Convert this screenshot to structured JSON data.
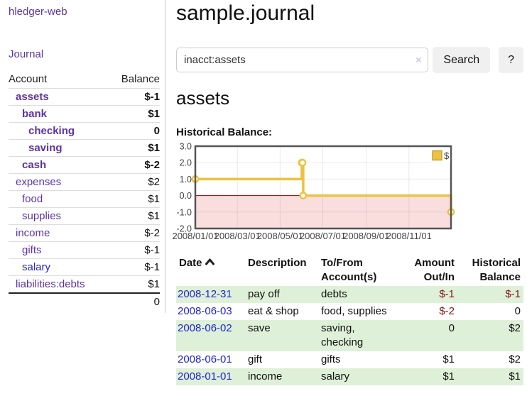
{
  "colors": {
    "link_purple": "#5c34a2",
    "link_blue": "#2323d6",
    "negative": "#801515",
    "negative_muted": "rgba(128,21,21,0.5)",
    "row_green": "#dff0d8",
    "chart_series_yellow": "#edc240",
    "chart_negative_fill": "#fadede",
    "chart_zero_line": "#8b0000",
    "chart_border": "#545454"
  },
  "app": {
    "brand": "hledger-web"
  },
  "sidebar": {
    "journal_label": "Journal",
    "accounts": {
      "headers": [
        "Account",
        "Balance"
      ],
      "rows": [
        {
          "account": "assets",
          "balance": "$-1",
          "indent": 0,
          "bold": true,
          "balance_tone": "negative",
          "link_tone": "purple"
        },
        {
          "account": "bank",
          "balance": "$1",
          "indent": 1,
          "bold": true,
          "balance_tone": "normal",
          "link_tone": "purple"
        },
        {
          "account": "checking",
          "balance": "0",
          "indent": 2,
          "bold": true,
          "balance_tone": "normal",
          "link_tone": "purple"
        },
        {
          "account": "saving",
          "balance": "$1",
          "indent": 2,
          "bold": true,
          "balance_tone": "normal",
          "link_tone": "purple"
        },
        {
          "account": "cash",
          "balance": "$-2",
          "indent": 1,
          "bold": true,
          "balance_tone": "negative",
          "link_tone": "purple"
        },
        {
          "account": "expenses",
          "balance": "$2",
          "indent": 0,
          "bold": false,
          "balance_tone": "normal",
          "link_tone": "purple"
        },
        {
          "account": "food",
          "balance": "$1",
          "indent": 1,
          "bold": false,
          "balance_tone": "normal",
          "link_tone": "purple"
        },
        {
          "account": "supplies",
          "balance": "$1",
          "indent": 1,
          "bold": false,
          "balance_tone": "normal",
          "link_tone": "purple"
        },
        {
          "account": "income",
          "balance": "$-2",
          "indent": 0,
          "bold": false,
          "balance_tone": "negative-muted",
          "link_tone": "purple"
        },
        {
          "account": "gifts",
          "balance": "$-1",
          "indent": 1,
          "bold": false,
          "balance_tone": "negative-muted",
          "link_tone": "purple"
        },
        {
          "account": "salary",
          "balance": "$-1",
          "indent": 1,
          "bold": false,
          "balance_tone": "negative-muted",
          "link_tone": "blue"
        },
        {
          "account": "liabilities:debts",
          "balance": "$1",
          "indent": 0,
          "bold": false,
          "balance_tone": "normal",
          "link_tone": "purple"
        }
      ],
      "total": "0"
    }
  },
  "main": {
    "title": "sample.journal",
    "search": {
      "value": "inacct:assets",
      "clear_icon": "×",
      "button_label": "Search",
      "help_label": "?"
    },
    "account_heading": "assets",
    "chart_heading": "Historical Balance:"
  },
  "chart_data": {
    "type": "line",
    "step": true,
    "title": "Historical Balance",
    "series": [
      {
        "name": "$",
        "color": "#edc240",
        "points": [
          [
            "2008-01-01",
            1
          ],
          [
            "2008-06-01",
            2
          ],
          [
            "2008-06-02",
            2
          ],
          [
            "2008-06-03",
            0
          ],
          [
            "2008-12-31",
            -1
          ]
        ]
      }
    ],
    "x_range": [
      "2008-01-01",
      "2008-12-31"
    ],
    "x_ticks": [
      {
        "date": "2008-01-01",
        "label": "2008/01/01"
      },
      {
        "date": "2008-03-01",
        "label": "2008/03/01"
      },
      {
        "date": "2008-05-01",
        "label": "2008/05/01"
      },
      {
        "date": "2008-07-01",
        "label": "2008/07/01"
      },
      {
        "date": "2008-09-01",
        "label": "2008/09/01"
      },
      {
        "date": "2008-11-01",
        "label": "2008/11/01"
      }
    ],
    "y_ticks": [
      {
        "value": 3,
        "label": "3.0"
      },
      {
        "value": 2,
        "label": "2.0"
      },
      {
        "value": 1,
        "label": "1.0"
      },
      {
        "value": 0,
        "label": "0.0"
      },
      {
        "value": -1,
        "label": "-1.0"
      },
      {
        "value": -2,
        "label": "-2.0"
      }
    ],
    "ylim": [
      -2,
      3
    ],
    "grid": true,
    "legend": {
      "label": "$",
      "position": "top-right"
    },
    "negative_region_shaded": true
  },
  "register": {
    "headers": [
      "Date",
      "Description",
      "To/From Account(s)",
      "Amount Out/In",
      "Historical Balance"
    ],
    "rows": [
      {
        "date": "2008-12-31",
        "description": "pay off",
        "accounts": "debts",
        "amount": "$-1",
        "balance": "$-1"
      },
      {
        "date": "2008-06-03",
        "description": "eat & shop",
        "accounts": "food, supplies",
        "amount": "$-2",
        "balance": "0"
      },
      {
        "date": "2008-06-02",
        "description": "save",
        "accounts": "saving, checking",
        "amount": "0",
        "balance": "$2"
      },
      {
        "date": "2008-06-01",
        "description": "gift",
        "accounts": "gifts",
        "amount": "$1",
        "balance": "$2"
      },
      {
        "date": "2008-01-01",
        "description": "income",
        "accounts": "salary",
        "amount": "$1",
        "balance": "$1"
      }
    ]
  }
}
